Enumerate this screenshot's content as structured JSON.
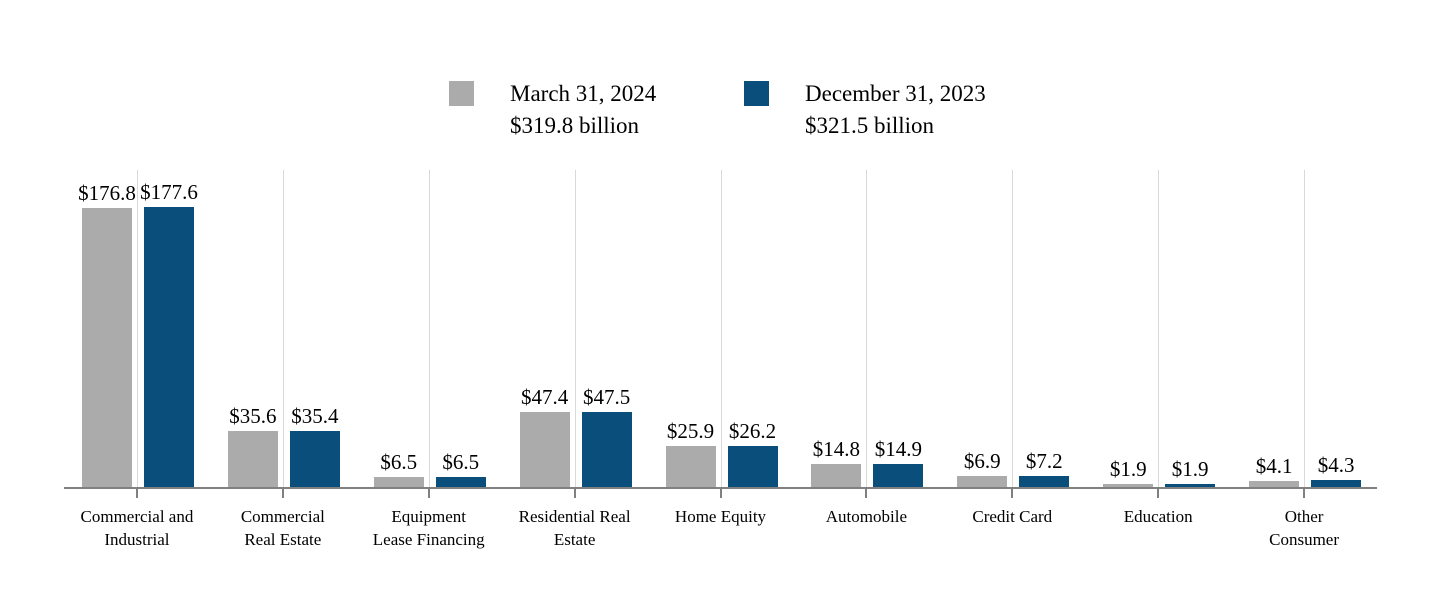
{
  "chart_data": {
    "type": "bar",
    "title": "",
    "value_prefix": "$",
    "categories": [
      "Commercial and\nIndustrial",
      "Commercial\nReal Estate",
      "Equipment\nLease Financing",
      "Residential Real\nEstate",
      "Home Equity",
      "Automobile",
      "Credit Card",
      "Education",
      "Other\nConsumer"
    ],
    "series": [
      {
        "name": "March 31, 2024",
        "total": "$319.8 billion",
        "color": "#ababab",
        "values": [
          176.8,
          35.6,
          6.5,
          47.4,
          25.9,
          14.8,
          6.9,
          1.9,
          4.1
        ]
      },
      {
        "name": "December 31, 2023",
        "total": "$321.5 billion",
        "color": "#0a4e7c",
        "values": [
          177.6,
          35.4,
          6.5,
          47.5,
          26.2,
          14.9,
          7.2,
          1.9,
          4.3
        ]
      }
    ],
    "ylim": [
      0,
      201
    ],
    "grid": "vertical-category-lines",
    "legend_position": "top-center",
    "axis_color": "#808080",
    "gridline_color": "#d9d9d9"
  }
}
